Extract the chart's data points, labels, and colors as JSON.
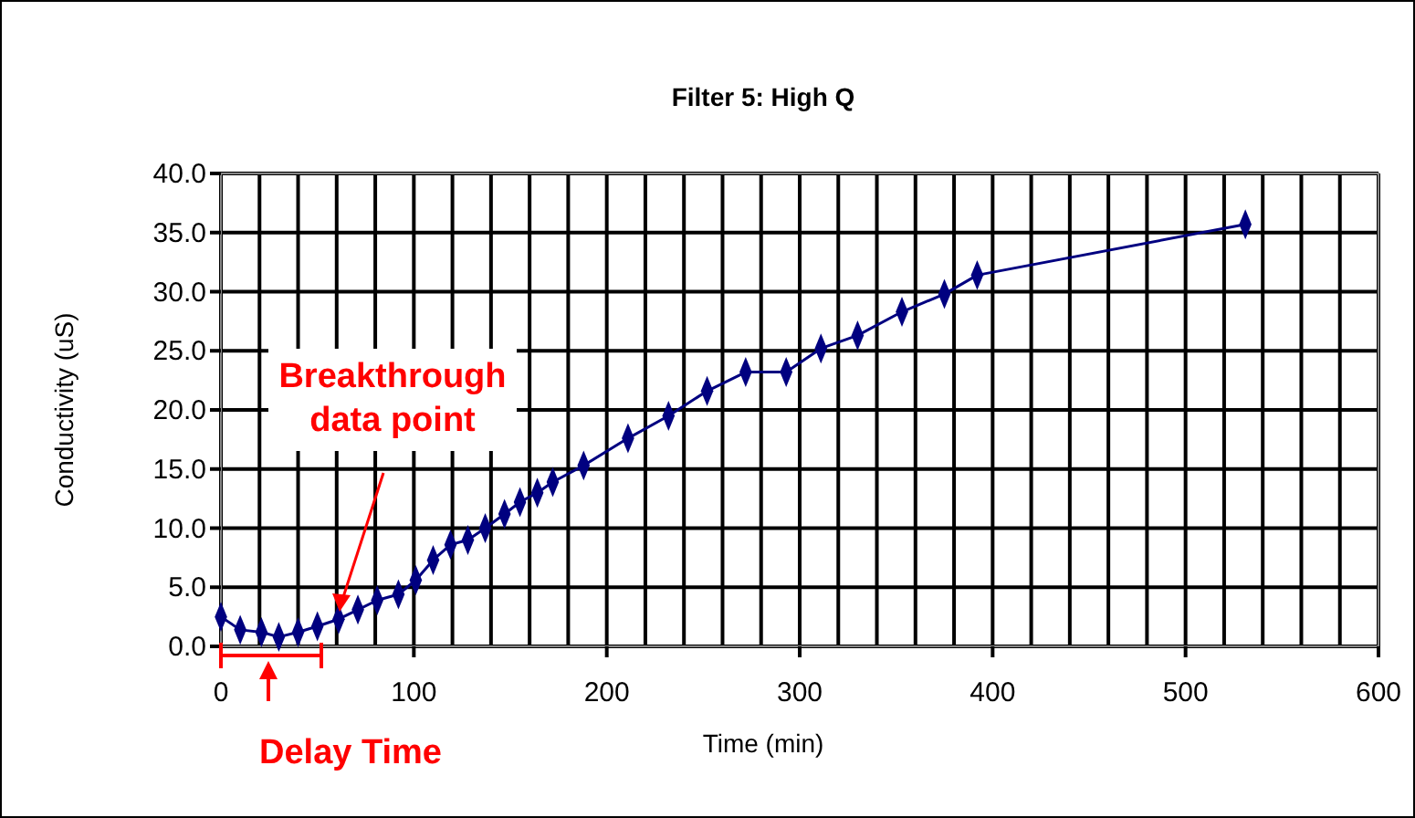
{
  "chart_data": {
    "type": "line",
    "title": "Filter 5: High Q",
    "xlabel": "Time (min)",
    "ylabel": "Conductivity (uS)",
    "x": [
      0,
      10,
      21,
      30,
      40,
      50,
      61,
      71,
      81,
      92,
      101,
      110,
      119,
      128,
      137,
      147,
      155,
      164,
      172,
      188,
      211,
      232,
      252,
      272,
      293,
      311,
      330,
      353,
      375,
      392,
      531
    ],
    "series": [
      {
        "color": "#000080",
        "values": [
          2.5,
          1.4,
          1.2,
          0.8,
          1.2,
          1.7,
          2.3,
          3.1,
          3.9,
          4.4,
          5.6,
          7.3,
          8.6,
          9.0,
          10.0,
          11.2,
          12.2,
          13.0,
          13.9,
          15.3,
          17.6,
          19.5,
          21.6,
          23.2,
          23.2,
          25.2,
          26.3,
          28.3,
          29.8,
          31.4,
          35.7
        ]
      }
    ],
    "xlim": [
      0,
      600
    ],
    "xticks": [
      0,
      100,
      200,
      300,
      400,
      500,
      600
    ],
    "ylim": [
      0,
      40
    ],
    "yticks": [
      {
        "value": 0,
        "label": "0.0"
      },
      {
        "value": 5,
        "label": "5.0"
      },
      {
        "value": 10,
        "label": "10.0"
      },
      {
        "value": 15,
        "label": "15.0"
      },
      {
        "value": 20,
        "label": "20.0"
      },
      {
        "value": 25,
        "label": "25.0"
      },
      {
        "value": 30,
        "label": "30.0"
      },
      {
        "value": 35,
        "label": "35.0"
      },
      {
        "value": 40,
        "label": "40.0"
      }
    ],
    "grid": true,
    "marker": "diamond",
    "line_style": "solid",
    "annotations": [
      "Breakthrough data point",
      "Delay Time"
    ]
  }
}
